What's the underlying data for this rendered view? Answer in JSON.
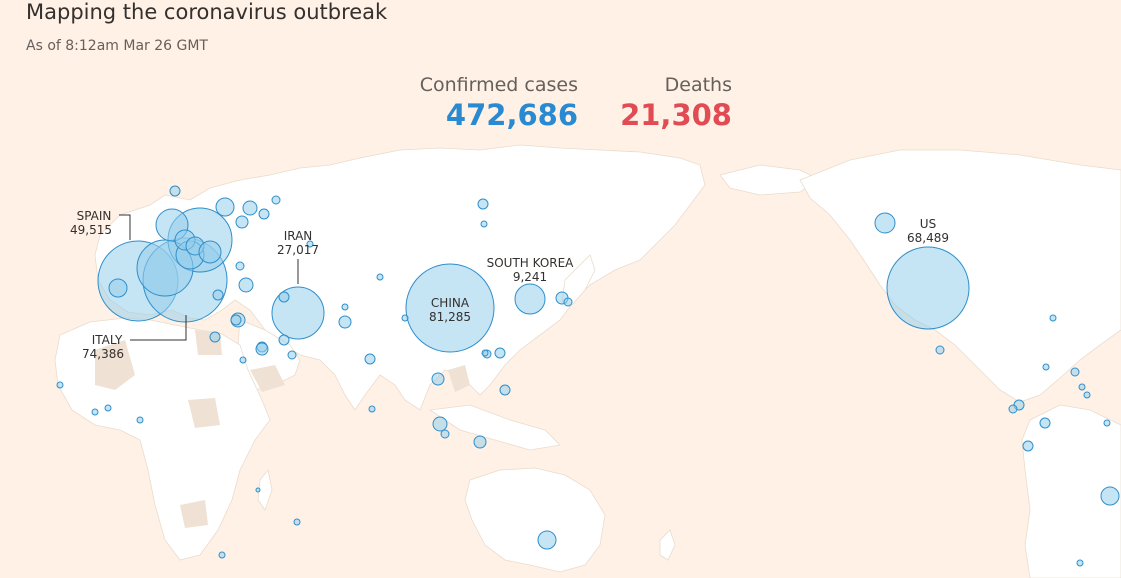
{
  "header": {
    "title": "Mapping the coronavirus outbreak",
    "subtitle": "As of 8:12am Mar 26 GMT"
  },
  "stats": {
    "confirmed_label": "Confirmed cases",
    "confirmed_value": "472,686",
    "deaths_label": "Deaths",
    "deaths_value": "21,308"
  },
  "callouts": {
    "spain": {
      "name": "SPAIN",
      "value": "49,515"
    },
    "italy": {
      "name": "ITALY",
      "value": "74,386"
    },
    "iran": {
      "name": "IRAN",
      "value": "27,017"
    },
    "china": {
      "name": "CHINA",
      "value": "81,285"
    },
    "south_korea": {
      "name": "SOUTH KOREA",
      "value": "9,241"
    },
    "us": {
      "name": "US",
      "value": "68,489"
    }
  },
  "colors": {
    "background": "#fff1e5",
    "land": "#ffffff",
    "confirmed": "#2a8ad1",
    "deaths": "#e04b54",
    "bubble_stroke": "#2e8fcc"
  }
}
